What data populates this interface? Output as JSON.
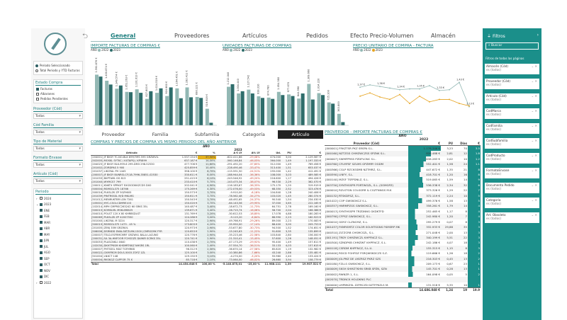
{
  "nav": {
    "back_icon": "back-arrow-icon",
    "tabs": [
      "General",
      "Proveedores",
      "Artículos",
      "Pedidos",
      "Efecto Precio-Volumen",
      "Almacén"
    ]
  },
  "left": {
    "period_options": [
      "Periodo Seleccionado",
      "Total Periodo y YTD Facturas"
    ],
    "estado_title": "Estado Compra",
    "estado_items": [
      "Facturas",
      "Albaranes",
      "Pedidos Pendientes"
    ],
    "proveedor_title": "Proveedor (Cód)",
    "proveedor_value": "Todas",
    "codfamilia_title": "Cód Familia",
    "codfamilia_value": "Todas",
    "tipomaterial_title": "Tipo de Material",
    "tipomaterial_value": "Todas",
    "formato_title": "Formato Envase",
    "formato_value": "Todas",
    "articulo_title": "Artículo (Cód)",
    "articulo_value": "Todas",
    "periodo_title": "Periodo",
    "periodo_items": [
      "2024",
      "2023",
      "ENE",
      "FEB",
      "MAR",
      "ABR",
      "MAY",
      "JUN",
      "JUL",
      "AGO",
      "SEP",
      "OCT",
      "NOV",
      "DIC",
      "2022"
    ]
  },
  "charts": {
    "c1_title": "IMPORTE FACTURAS DE COMPRAS €",
    "c2_title": "UNIDADES FACTURAS DE COMPRAS",
    "c3_title": "PRECIO UNITARIO DE COMPRA - FACTURA",
    "legend_label": "AÑO",
    "legend": [
      "2022",
      "2023"
    ],
    "colors": {
      "s2022": "#93b8b4",
      "s2023": "#2e6d6b",
      "line": "#e6a31f"
    }
  },
  "chart_data": [
    {
      "type": "bar",
      "title": "IMPORTE FACTURAS DE COMPRAS €",
      "series": [
        {
          "name": "2022",
          "values": [
            1.59,
            1.4,
            1.15,
            1.05,
            1.13,
            0.83,
            1.02,
            0.92,
            1.16,
            1.19,
            0.89,
            0.52
          ]
        },
        {
          "name": "2023",
          "values": [
            1.53,
            1.28,
            1.25,
            1.04,
            1.02,
            1.07,
            1.16,
            1.19,
            0.85,
            0.88,
            0.86,
            0.08
          ]
        }
      ],
      "data_labels": [
        "1.591.876 €",
        "1.400.874 €",
        "1.148.574 €",
        "1.051.263 €",
        "1.131.613 €",
        "827.803 €",
        "1.024.519 €",
        "916.960 €",
        "1.164.451 €",
        "1.192.411 €",
        "890.121 €",
        "519.919 €"
      ]
    },
    {
      "type": "bar",
      "title": "UNIDADES FACTURAS DE COMPRAS",
      "series": [
        {
          "name": "2022",
          "values": [
            1.21,
            1.0,
            1.12,
            0.91,
            0.87,
            1.05,
            0.97,
            0.84,
            1.3,
            1.01,
            0.72,
            0.36
          ]
        },
        {
          "name": "2023",
          "values": [
            1.29,
            1.07,
            1.0,
            0.86,
            0.83,
            0.95,
            0.92,
            1.0,
            0.81,
            0.95,
            0.68,
            0.1
          ]
        }
      ],
      "data_labels": [
        "1.212.040",
        "1.004.440",
        "1.127.542",
        "918.310",
        "874.780",
        "1.054.380",
        "977.670",
        "844.590",
        "1.309.660",
        "1.014.220",
        "725.100",
        "363.800"
      ]
    },
    {
      "type": "line",
      "title": "PRECIO UNITARIO DE COMPRA - FACTURA",
      "series": [
        {
          "name": "2022",
          "values": [
            1.37,
            1.4,
            1.38,
            1.36,
            1.34,
            1.35,
            1.35,
            1.39,
            1.33,
            1.34,
            1.43,
            1.13
          ]
        },
        {
          "name": "2023",
          "values": [
            1.26,
            1.3,
            1.25,
            1.22,
            1.28,
            1.17,
            1.26,
            1.19,
            1.22,
            1.22,
            1.17,
            1.14
          ]
        }
      ],
      "data_labels": [
        "1,37 €",
        "1,40 €",
        "1,38 €",
        "1,36 €",
        "1,34 €",
        "1,35 €",
        "1,35 €",
        "1,39 €",
        "1,33 €",
        "1,34 €",
        "1,43 €",
        "1,13 €"
      ]
    }
  ],
  "tabs2": [
    "Proveedor",
    "Familia",
    "Subfamilia",
    "Categoría",
    "Artículo"
  ],
  "table1": {
    "title": "COMPRAS Y PRECIOS DE COMPRA VS MISMO PERIODO DEL AÑO ANTERIOR",
    "group": "AÑO",
    "year": "2023",
    "headers": [
      "Artículo",
      "€",
      "%",
      "Δ € LY",
      "Δ% LY",
      "Ud.",
      "PU",
      "€"
    ],
    "rows": [
      [
        "[204001] JF BKSY TC-NO-BLK 899/7MS 595 GRZWVIL",
        "1.537.154 €",
        "37,50%",
        "-622.411,86",
        "-29,08%",
        "474.000",
        "3,00",
        "2.129.567 €"
      ],
      [
        "[502005] MOSKL SYTKC / KXTAPSJ / KP5899",
        "637.187 €",
        "14,00%",
        "-560.146,84",
        "-46,03%",
        "364.000",
        "1,49",
        "1.197.333 €"
      ],
      [
        "[204025] JF BKSY BLK-999-6 299-DM3 298-52530",
        "477.706 €",
        "11,60%",
        "-291.492,20",
        "-37,65%",
        "312.000",
        "1,49",
        "769.458 €"
      ],
      [
        "[201002] ZORDPAS 5 900",
        "425.859 €",
        "10,40%",
        "-228.490,46",
        "-33,47%",
        "313.400",
        "1,51",
        "653.037 €"
      ],
      [
        "[201037] LIKCRAL PH 1445",
        "358.100 €",
        "8,70%",
        "-115.591,50",
        "-24,51%",
        "255.000",
        "1,42",
        "412.491 €"
      ],
      [
        "[200007] JF BKSY BUNRSI-CF/18-7996-35851-02530",
        "330.611 €",
        "8,00%",
        "-188.944,04",
        "-36,36%",
        "108.000",
        "3,03",
        "489.585 €"
      ],
      [
        "[201033] BKPTAML DS 813",
        "251.415 €",
        "6,10%",
        "-243.546,92",
        "-49,20%",
        "216.600",
        "1,17",
        "494.426 €"
      ],
      [
        "[201040] WYMCS7 799",
        "233.410 €",
        "5,70%",
        "-143.475,34",
        "-38,07%",
        "96.530",
        "2,29",
        "362.070 €"
      ],
      [
        "[200011] KNKTX SPRKXT EXGSODKKZCD5 DX0",
        "202.041 €",
        "4,90%",
        "-116.183,67",
        "-36,33%",
        "175.170",
        "1,20",
        "319.919 €"
      ],
      [
        "[500004] RSMSGL375 18766",
        "175.269 €",
        "4,30%",
        "-172.076,00",
        "-49,53%",
        "68.350",
        "2,52",
        "323.476 €"
      ],
      [
        "[500016] PLKSLZK ZP 50Z9605",
        "150.573 €",
        "3,70%",
        "-9.910,00",
        "-6,18%",
        "104.840",
        "1,28",
        "240.406 €"
      ],
      [
        "[201039] PINTRSSSL M/D MKLMG",
        "150.611 €",
        "3,70%",
        "-78.562,48",
        "-34,27%",
        "103.020",
        "1,45",
        "280.374 €"
      ],
      [
        "[501012] MENRUKTBR LDN 7261",
        "150.543 €",
        "3,70%",
        "-48.492,65",
        "-24,37%",
        "90.540",
        "1,54",
        "234.030 €"
      ],
      [
        "[105001] HYC-CSGI-CDMRE103",
        "150.020 €",
        "3,70%",
        "-64.143,56",
        "-29,95%",
        "37.000",
        "3,65",
        "222.165 €"
      ],
      [
        "[102014] MPH CMPRSC263242 60 SRKS 35L",
        "140.487 €",
        "3,40%",
        "-18.672,73",
        "-11,73%",
        "64.751",
        "2,78",
        "169.160 €"
      ],
      [
        "[500015] KOMSLML MSKLM6625",
        "139.671 €",
        "3,40%",
        "-26.715,74",
        "-16,06%",
        "58.700",
        "2,04",
        "166.386 €"
      ],
      [
        "[504010] POLST 120 X 80 KHRBSDLST",
        "131.769 €",
        "3,20%",
        "-30.612,53",
        "-18,85%",
        "17.078",
        "4,88",
        "180.283 €"
      ],
      [
        "[500069] PLKSLZK ZP 42007550",
        "124.286 €",
        "3,00%",
        "-9.115,20",
        "-6,84%",
        "86.990",
        "2,23",
        "160.923 €"
      ],
      [
        "[501040] LIKCRAL M 3224",
        "120.317 €",
        "2,90%",
        "-49.766,91",
        "-29,26%",
        "89.000",
        "2,23",
        "170.083 €"
      ],
      [
        "[500019] RSMSGL375 1475 - 45 %",
        "173.803 €",
        "4,20%",
        "-35.950,00",
        "-17,14%",
        "88.400",
        "3,00",
        "209.753 €"
      ],
      [
        "[201005] ZENJ 35M GRZWVL",
        "120.973 €",
        "2,90%",
        "-53.677,80",
        "-30,73%",
        "94.500",
        "1,52",
        "174.651 €"
      ],
      [
        "[506006] DSRNDD DWA-SKTZLMK-1500 (CMRSCMK FYR",
        "120.653 €",
        "2,90%",
        "-15.245,63",
        "-11,22%",
        "91.600",
        "3,35",
        "135.899 €"
      ],
      [
        "[200007] TELD-ESFRMCMRF GRZWVL BALA LACUNO",
        "120.776 €",
        "2,90%",
        "-35.223,46",
        "-22,58%",
        "103.840",
        "2,80",
        "156.000 €"
      ],
      [
        "[200031] SA 3A-HNFOOR FCHSOZS DA9KR SCRKS 35L",
        "120.741 €",
        "2,90%",
        "-21.310,41",
        "-15,45%",
        "57.600",
        "1,26",
        "148.051 €"
      ],
      [
        "[503053] PLASCNKLI 4640",
        "110.438 €",
        "2,70%",
        "-47.173,29",
        "-29,92%",
        "95.400",
        "1,49",
        "157.611 €"
      ],
      [
        "[102030] DKHTPKSM KHSMRTKKZ NHSRS 1RL",
        "100.060 €",
        "2,40%",
        "-57.554,70",
        "-36,51%",
        "33.133",
        "4,03",
        "157.615 €"
      ],
      [
        "[200007] PHTSSSL MXZ TGFHRKB",
        "96.312 €",
        "2,30%",
        "-36.670,14",
        "-27,58%",
        "85.820",
        "1,19",
        "132.982 €"
      ],
      [
        "[500022] CKMFRCM DOLS-5003 ZOFZ 1ZL",
        "125.100 €",
        "3,00%",
        "-10.380,86",
        "-7,66%",
        "43.240",
        "2,86",
        "135.481 €"
      ],
      [
        "[501004] LNXCT 148",
        "129.150 €",
        "3,10%",
        "-4.274,00",
        "-3,20%",
        "55.960",
        "2,40",
        "133.424 €"
      ],
      [
        "[500004] RKSKGZ CLIPFOR 75 X",
        "85.718 €",
        "2,10%",
        "-73.064,00",
        "-46,02%",
        "26.660",
        "3,94",
        "158.779 €"
      ]
    ],
    "total": [
      "Total",
      "14.454.648 €",
      "100,00 %",
      "-5.140.875,01",
      "-25,00 %",
      "11.988.111",
      "1,39",
      "19.907.521 €"
    ]
  },
  "table2": {
    "title": "PROVEEDOR - IMPORTE FACTURAS DE COMPRAS €",
    "group": "AÑO",
    "year": "2022",
    "headers": [
      "Proveedor (Cód)",
      "€",
      "PU",
      "Días",
      "€"
    ],
    "rows": [
      [
        "[000001] FRKZTSR PKZ SRSPA S.L.",
        "1.178.346 €",
        "3,23",
        "70",
        "3.5"
      ],
      [
        "[000160] NZTZGS CHMZWCZSS SPZNK S.L.",
        "828.488 €",
        "2,81",
        "12",
        "1.8"
      ],
      [
        "[000007] SWMFPRSS PZDPLONC S.L.",
        "638.283 €",
        "2,02",
        "10",
        "1.2"
      ],
      [
        "[000760] CFLMFSF SZLMS GPZMRY OGDM",
        "552.401 €",
        "1,58",
        "24",
        "1.1"
      ],
      [
        "[000366] CGLP RZCKSSMB NZTMRZ, S.L.",
        "447.672 €",
        "1,35",
        "21",
        "8"
      ],
      [
        "[000590] LINFY, S.L.",
        "418.701 €",
        "1,20",
        "16",
        "8"
      ],
      [
        "[000140] MZSF TSFPDNLZ, S.L.",
        "519.065 €",
        "1,59",
        "14",
        "9"
      ],
      [
        "[003750] SYNTHSSPR PORTWGZL, S.L. (SOMGPZ)",
        "536.338 €",
        "2,34",
        "32",
        "6"
      ],
      [
        "[000010] RZLSTGN COLSGRR & CGZTNNGS M.K",
        "373.326 €",
        "1,29",
        "22",
        "7"
      ],
      [
        "[000132] RTSKDFSZ, S.L.",
        "372.119 €",
        "2,24",
        "10",
        "5"
      ],
      [
        "[001022] COP GWSKOKCZ S.L.",
        "499.376 €",
        "1,58",
        "13",
        "5"
      ],
      [
        "[000357] HNRMPZGS GWSKOKCZ, S.L.",
        "358.261 €",
        "1,79",
        "14",
        "4"
      ],
      [
        "[000013] SYNTHSSPR TRZDNNG GKDKTFD",
        "252.465 €",
        "1,17",
        "8",
        "4"
      ],
      [
        "[000790] CFPSZ GWSKOKCZ, S.L.",
        "242.980 €",
        "1,20",
        "7",
        "4"
      ],
      [
        "[000010] GDYZ CLZNCMZ, S.L.",
        "295.279 €",
        "0,07",
        "8",
        "3"
      ],
      [
        "[001037] FKMRSMTZ COLOR SOLMTSGNS FKMSRP MK",
        "332.933 €",
        "29,88",
        "35",
        "3"
      ],
      [
        "[000310] ZLTZCRB CHSMCSZL, S.L.",
        "271.048 €",
        "2,00",
        "13",
        "3"
      ],
      [
        "[001191] TRDY CHMZWCZL KHPFNCZ S.L.",
        "340.199 €",
        "5,51",
        "22",
        "3"
      ],
      [
        "[000300] SZNDPKB CHMZWT KHPFNCZ, S.L.",
        "242.186 €",
        "4,07",
        "18",
        "3"
      ],
      [
        "[000118] CSRDM KHPFNCZ, S.L.U.",
        "155.315 €",
        "1,15",
        "8",
        "3"
      ],
      [
        "[000400] RDCD FGHFDZ FSRQWSKDCZS S.Z.",
        "119.666 €",
        "1,26",
        "18",
        "2"
      ],
      [
        "[000009] JGLPMZ DE LMZRSZ PKRZ SZS",
        "216.303 €",
        "0,45",
        "13",
        "2"
      ],
      [
        "[000180] FZLLS GWSKOKCZ, S.L.",
        "209.173 €",
        "0,67",
        "23",
        "1"
      ],
      [
        "[000009] SKSH SHMZTKHN SRKB SPZN, SZN",
        "145.701 €",
        "0,28",
        "13",
        "1"
      ],
      [
        "[000002] RWNZR 1, S.L.",
        "164.098 €",
        "0,05",
        "5",
        "2"
      ],
      [
        "[002070] TRDNCK HOLDKNG PLC",
        "",
        "",
        "",
        ""
      ],
      [
        "[000000] LMPMKZSL ZZFRCZD DZTFPKZLS M.",
        "131.518 €",
        "5,35",
        "10",
        "1"
      ]
    ],
    "total": [
      "Total",
      "14.686.048 €",
      "1,24",
      "19",
      "19.9"
    ]
  },
  "filters": {
    "title": "Filtros",
    "search": "Buscar",
    "section": "Filtros de todas las páginas",
    "cards": [
      [
        "Almacén (Cód)",
        "es (todos)"
      ],
      [
        "Proveedor (Cód)",
        "es (todos)"
      ],
      [
        "Artículo (Cód)",
        "es (todos)"
      ],
      [
        "CodMarca",
        "es (todos)"
      ],
      [
        "CodFamilia",
        "es (todos)"
      ],
      [
        "CodSubfamilia",
        "es (todos)"
      ],
      [
        "CodProducto",
        "es (todos)"
      ],
      [
        "FormatoEnvase",
        "es (todos)"
      ],
      [
        "Documento Pedido",
        "es (todos)"
      ],
      [
        "Categoría",
        "es (todos)"
      ],
      [
        "Art. Obsoleto",
        "es (todos)"
      ]
    ]
  }
}
